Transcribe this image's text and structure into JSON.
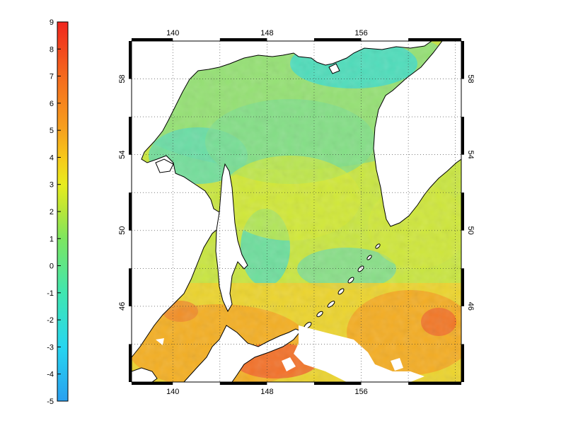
{
  "colorbar": {
    "ticks": [
      "9",
      "8",
      "7",
      "6",
      "5",
      "4",
      "3",
      "2",
      "1",
      "0",
      "-1",
      "-2",
      "-3",
      "-4",
      "-5"
    ],
    "min": -5,
    "max": 9,
    "stops": [
      {
        "v": -5,
        "color": "#2aa0f0"
      },
      {
        "v": -3,
        "color": "#27d6f0"
      },
      {
        "v": -1,
        "color": "#40e6b0"
      },
      {
        "v": 1,
        "color": "#7de660"
      },
      {
        "v": 2,
        "color": "#b6e63a"
      },
      {
        "v": 3,
        "color": "#e8ec1e"
      },
      {
        "v": 4,
        "color": "#f7c81a"
      },
      {
        "v": 5,
        "color": "#f6a21e"
      },
      {
        "v": 7,
        "color": "#f56a1e"
      },
      {
        "v": 9,
        "color": "#f0261e"
      }
    ]
  },
  "map": {
    "lon_labels": [
      "140",
      "148",
      "156"
    ],
    "lat_labels": [
      "58",
      "54",
      "50",
      "46"
    ],
    "lon_range": [
      136.5,
      164.5
    ],
    "lat_range": [
      42,
      60
    ],
    "gridline_style": "dotted",
    "ocean_base_color": "#c9e640",
    "land_color": "#ffffff",
    "missing_color": "#ffffff",
    "coast_color": "#000000"
  }
}
